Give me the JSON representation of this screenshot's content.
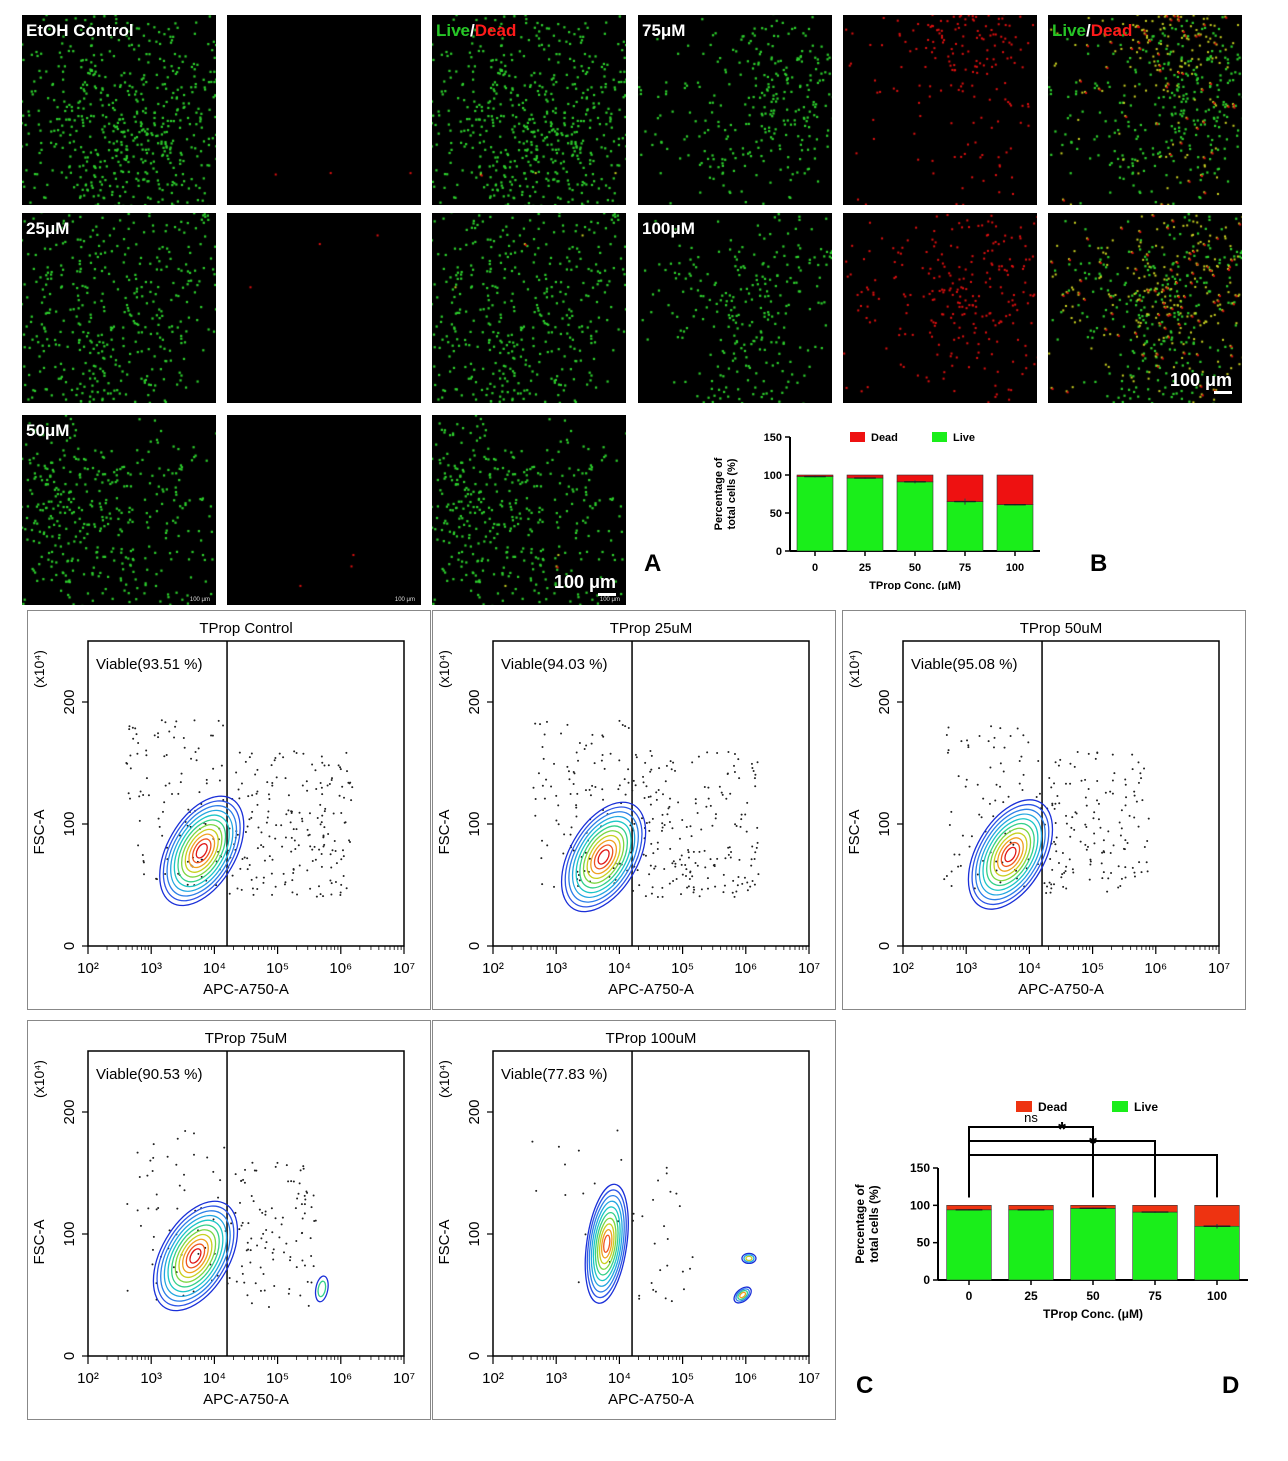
{
  "panel_letters": {
    "A": "A",
    "B": "B",
    "C": "C",
    "D": "D"
  },
  "micrographs": {
    "rows": [
      {
        "label": "EtOH Control",
        "density": 1.0,
        "dead": 0.0
      },
      {
        "label": "25μM",
        "density": 0.75,
        "dead": 0.0
      },
      {
        "label": "50μM",
        "density": 0.55,
        "dead": 0.0
      },
      {
        "label": "75μM",
        "density": 0.4,
        "dead": 0.45
      },
      {
        "label": "100μM",
        "density": 0.35,
        "dead": 0.5
      }
    ],
    "live_word": "Live",
    "slash": "/",
    "dead_word": "Dead",
    "scale_label": "100 μm",
    "tiny_scale": "100 μm",
    "colors": {
      "live": "#2dd12d",
      "dead": "#e01010",
      "merge": "#c8d020"
    }
  },
  "chart_data": [
    {
      "type": "bar",
      "title": "",
      "categories": [
        "0",
        "25",
        "50",
        "75",
        "100"
      ],
      "series": [
        {
          "name": "Live",
          "values": [
            98,
            96,
            91,
            65,
            61
          ],
          "color": "#1aee1a"
        },
        {
          "name": "Dead",
          "values": [
            2,
            4,
            9,
            35,
            39
          ],
          "color": "#ee1111"
        }
      ],
      "errors": [
        1,
        1,
        2,
        4,
        1
      ],
      "xlabel": "TProp Conc. (μM)",
      "ylabel": "Percentage of total cells (%)",
      "ylabel_lines": [
        "Percentage of",
        "total cells (%)"
      ],
      "yticks": [
        "0",
        "50",
        "100",
        "150"
      ],
      "ylim": [
        0,
        150
      ],
      "legend": "top",
      "stacked": true
    },
    {
      "type": "bar",
      "title": "",
      "categories": [
        "0",
        "25",
        "50",
        "75",
        "100"
      ],
      "series": [
        {
          "name": "Live",
          "values": [
            94,
            94,
            96,
            91,
            72
          ],
          "color": "#1aee1a"
        },
        {
          "name": "Dead",
          "values": [
            6,
            6,
            4,
            9,
            28
          ],
          "color": "#ee3311"
        }
      ],
      "errors": [
        1,
        1,
        1,
        1,
        3
      ],
      "xlabel": "TProp Conc. (μM)",
      "ylabel": "Percentage of total cells (%)",
      "ylabel_lines": [
        "Percentage of",
        "total cells (%)"
      ],
      "yticks": [
        "0",
        "50",
        "100",
        "150"
      ],
      "ylim": [
        0,
        150
      ],
      "legend": "top",
      "stacked": true,
      "significance": [
        {
          "from": "0",
          "to": "50",
          "label": "ns"
        },
        {
          "from": "0",
          "to": "75",
          "label": "*"
        },
        {
          "from": "0",
          "to": "100",
          "label": "*"
        }
      ]
    }
  ],
  "flow_plots": [
    {
      "title": "TProp Control",
      "viable": "Viable(93.51 %)",
      "cx": 3.8,
      "cy": 78,
      "mode": "normal",
      "scatter_right": 1.0
    },
    {
      "title": "TProp 25uM",
      "viable": "Viable(94.03 %)",
      "cx": 3.75,
      "cy": 73,
      "mode": "normal",
      "scatter_right": 1.0
    },
    {
      "title": "TProp 50uM",
      "viable": "Viable(95.08 %)",
      "cx": 3.7,
      "cy": 75,
      "mode": "normal",
      "scatter_right": 0.7
    },
    {
      "title": "TProp 75uM",
      "viable": "Viable(90.53 %)",
      "cx": 3.7,
      "cy": 82,
      "mode": "normal",
      "scatter_right": 0.45
    },
    {
      "title": "TProp 100uM",
      "viable": "Viable(77.83 %)",
      "cx": 3.8,
      "cy": 92,
      "mode": "dead",
      "scatter_right": 0.0
    }
  ],
  "flow_axes": {
    "xlabel": "APC-A750-A",
    "ylabel": "FSC-A",
    "ymult": "(x10⁴)",
    "xticks": [
      "10²",
      "10³",
      "10⁴",
      "10⁵",
      "10⁶",
      "10⁷"
    ],
    "yticks": [
      "0",
      "100",
      "200"
    ],
    "gate_x": 4.2
  }
}
